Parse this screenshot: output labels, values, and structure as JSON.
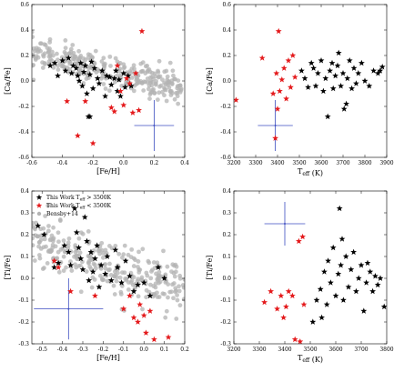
{
  "colors": {
    "this_work_hot": "#000000",
    "this_work_cool": "#e41a1c",
    "bensby": "#b3b3b3",
    "error_bar": "#3b4cc0"
  },
  "legend": {
    "entries": [
      {
        "label": "This Work T$_{eff}$ > 3500K",
        "text": "This Work T",
        "sub": "eff",
        "suffix": " > 3500K",
        "series": "hot",
        "marker": "star"
      },
      {
        "label": "This Work T$_{eff}$ < 3500K",
        "text": "This Work T",
        "sub": "eff",
        "suffix": " < 3500K",
        "series": "cool",
        "marker": "star"
      },
      {
        "label": "Bensby+14",
        "text": "Bensby+14",
        "sub": "",
        "suffix": "",
        "series": "bensby",
        "marker": "circle"
      }
    ],
    "placement": "top-left of bottom-left panel"
  },
  "chart_data": [
    {
      "type": "scatter",
      "panel": "top-left",
      "xlabel": "[Fe/H]",
      "ylabel": "[Ca/Fe]",
      "xlim": [
        -0.6,
        0.4
      ],
      "ylim": [
        -0.6,
        0.6
      ],
      "xticks": [
        "-0.6",
        "-0.4",
        "-0.2",
        "0.0",
        "0.2",
        "0.4"
      ],
      "yticks": [
        "-0.6",
        "-0.4",
        "-0.2",
        "0.0",
        "0.2",
        "0.4",
        "0.6"
      ],
      "error_bar": {
        "x": 0.2,
        "y": -0.35,
        "xerr": 0.13,
        "yerr": 0.2
      },
      "series": [
        {
          "name": "This Work T_eff > 3500K",
          "points": [
            [
              -0.48,
              0.12
            ],
            [
              -0.45,
              0.14
            ],
            [
              -0.43,
              0.04
            ],
            [
              -0.4,
              0.16
            ],
            [
              -0.38,
              0.08
            ],
            [
              -0.36,
              0.18
            ],
            [
              -0.34,
              0.06
            ],
            [
              -0.33,
              0.12
            ],
            [
              -0.31,
              0.1
            ],
            [
              -0.3,
              0.04
            ],
            [
              -0.29,
              0.0
            ],
            [
              -0.28,
              0.14
            ],
            [
              -0.27,
              -0.04
            ],
            [
              -0.26,
              0.07
            ],
            [
              -0.25,
              0.12
            ],
            [
              -0.24,
              -0.1
            ],
            [
              -0.22,
              0.05
            ],
            [
              -0.21,
              0.15
            ],
            [
              -0.2,
              -0.06
            ],
            [
              -0.19,
              0.1
            ],
            [
              -0.17,
              0.02
            ],
            [
              -0.16,
              -0.02
            ],
            [
              -0.14,
              0.08
            ],
            [
              -0.12,
              -0.12
            ],
            [
              -0.11,
              0.04
            ],
            [
              -0.09,
              0.03
            ],
            [
              -0.08,
              -0.03
            ],
            [
              -0.06,
              0.02
            ],
            [
              -0.05,
              0.08
            ],
            [
              -0.04,
              -0.08
            ],
            [
              -0.03,
              0.01
            ],
            [
              -0.02,
              -0.12
            ],
            [
              0.0,
              0.06
            ],
            [
              0.01,
              -0.05
            ],
            [
              0.03,
              0.04
            ],
            [
              0.05,
              -0.04
            ],
            [
              -0.22,
              -0.28
            ],
            [
              -0.23,
              -0.28
            ]
          ]
        },
        {
          "name": "This Work T_eff < 3500K",
          "points": [
            [
              0.12,
              0.39
            ],
            [
              -0.37,
              -0.16
            ],
            [
              -0.3,
              -0.43
            ],
            [
              -0.25,
              -0.16
            ],
            [
              -0.2,
              -0.49
            ],
            [
              -0.08,
              -0.21
            ],
            [
              -0.06,
              -0.24
            ],
            [
              -0.04,
              0.12
            ],
            [
              -0.02,
              -0.08
            ],
            [
              0.0,
              -0.19
            ],
            [
              0.02,
              0.02
            ],
            [
              0.04,
              -0.02
            ],
            [
              0.06,
              -0.25
            ],
            [
              0.08,
              0.06
            ],
            [
              0.1,
              -0.23
            ]
          ]
        },
        {
          "name": "Bensby+14",
          "scatter_generated": true,
          "x_range": [
            -0.6,
            0.38
          ],
          "trend": [
            [
              -0.6,
              0.22
            ],
            [
              -0.2,
              0.11
            ],
            [
              0.0,
              0.05
            ],
            [
              0.38,
              -0.05
            ]
          ],
          "spread": 0.06,
          "count": 320
        }
      ]
    },
    {
      "type": "scatter",
      "panel": "top-right",
      "xlabel": "T$_{eff}$ (K)",
      "ylabel": "[Ca/Fe]",
      "xlim": [
        3200,
        3900
      ],
      "ylim": [
        -0.6,
        0.6
      ],
      "xticks": [
        "3200",
        "3300",
        "3400",
        "3500",
        "3600",
        "3700",
        "3800",
        "3900"
      ],
      "yticks": [
        "-0.6",
        "-0.4",
        "-0.2",
        "0.0",
        "0.2",
        "0.4",
        "0.6"
      ],
      "error_bar": {
        "x": 3390,
        "y": -0.35,
        "xerr": 80,
        "yerr": 0.2
      },
      "series": [
        {
          "name": "This Work T_eff > 3500K",
          "points": [
            [
              3510,
              0.08
            ],
            [
              3525,
              0.02
            ],
            [
              3540,
              -0.05
            ],
            [
              3555,
              0.14
            ],
            [
              3565,
              0.1
            ],
            [
              3575,
              -0.04
            ],
            [
              3585,
              0.06
            ],
            [
              3600,
              0.16
            ],
            [
              3610,
              -0.08
            ],
            [
              3620,
              0.02
            ],
            [
              3630,
              -0.28
            ],
            [
              3640,
              0.08
            ],
            [
              3650,
              0.14
            ],
            [
              3655,
              -0.06
            ],
            [
              3665,
              0.04
            ],
            [
              3675,
              0.12
            ],
            [
              3680,
              0.22
            ],
            [
              3690,
              -0.04
            ],
            [
              3700,
              0.06
            ],
            [
              3705,
              -0.22
            ],
            [
              3715,
              -0.18
            ],
            [
              3720,
              0.02
            ],
            [
              3730,
              0.16
            ],
            [
              3740,
              -0.06
            ],
            [
              3750,
              0.1
            ],
            [
              3760,
              -0.02
            ],
            [
              3770,
              0.06
            ],
            [
              3785,
              0.14
            ],
            [
              3800,
              0.0
            ],
            [
              3820,
              -0.04
            ],
            [
              3840,
              0.08
            ],
            [
              3860,
              0.06
            ],
            [
              3870,
              0.08
            ],
            [
              3880,
              0.11
            ]
          ]
        },
        {
          "name": "This Work T_eff < 3500K",
          "points": [
            [
              3210,
              -0.15
            ],
            [
              3330,
              0.18
            ],
            [
              3380,
              -0.1
            ],
            [
              3390,
              -0.45
            ],
            [
              3395,
              0.06
            ],
            [
              3400,
              -0.22
            ],
            [
              3405,
              0.39
            ],
            [
              3410,
              -0.08
            ],
            [
              3420,
              0.01
            ],
            [
              3430,
              0.1
            ],
            [
              3440,
              -0.14
            ],
            [
              3450,
              0.16
            ],
            [
              3460,
              -0.05
            ],
            [
              3470,
              0.2
            ],
            [
              3480,
              0.03
            ]
          ]
        }
      ]
    },
    {
      "type": "scatter",
      "panel": "bottom-left",
      "xlabel": "[Fe/H]",
      "ylabel": "[Ti/Fe]",
      "xlim": [
        -0.55,
        0.2
      ],
      "ylim": [
        -0.3,
        0.4
      ],
      "xticks": [
        "-0.5",
        "-0.4",
        "-0.3",
        "-0.2",
        "-0.1",
        "0.0",
        "0.1",
        "0.2"
      ],
      "yticks": [
        "-0.3",
        "-0.2",
        "-0.1",
        "0.0",
        "0.1",
        "0.2",
        "0.3",
        "0.4"
      ],
      "error_bar": {
        "x": -0.37,
        "y": -0.14,
        "xerr": 0.17,
        "yerr": 0.14
      },
      "series": [
        {
          "name": "This Work T_eff > 3500K",
          "points": [
            [
              -0.52,
              0.24
            ],
            [
              -0.49,
              0.2
            ],
            [
              -0.44,
              0.05
            ],
            [
              -0.42,
              0.07
            ],
            [
              -0.39,
              0.15
            ],
            [
              -0.37,
              0.12
            ],
            [
              -0.36,
              0.06
            ],
            [
              -0.34,
              0.32
            ],
            [
              -0.33,
              0.21
            ],
            [
              -0.32,
              0.14
            ],
            [
              -0.31,
              0.09
            ],
            [
              -0.3,
              0.04
            ],
            [
              -0.29,
              0.28
            ],
            [
              -0.28,
              0.17
            ],
            [
              -0.27,
              -0.01
            ],
            [
              -0.26,
              0.12
            ],
            [
              -0.25,
              0.03
            ],
            [
              -0.24,
              0.09
            ],
            [
              -0.23,
              0.15
            ],
            [
              -0.22,
              -0.04
            ],
            [
              -0.21,
              0.06
            ],
            [
              -0.19,
              0.02
            ],
            [
              -0.18,
              0.1
            ],
            [
              -0.16,
              -0.01
            ],
            [
              -0.14,
              0.13
            ],
            [
              -0.13,
              0.05
            ],
            [
              -0.11,
              -0.02
            ],
            [
              -0.09,
              0.08
            ],
            [
              -0.07,
              0.01
            ],
            [
              -0.05,
              -0.06
            ],
            [
              -0.03,
              -0.03
            ],
            [
              0.0,
              -0.02
            ],
            [
              0.03,
              -0.08
            ],
            [
              0.07,
              0.05
            ],
            [
              0.1,
              0.0
            ]
          ]
        },
        {
          "name": "This Work T_eff < 3500K",
          "points": [
            [
              -0.44,
              0.08
            ],
            [
              -0.42,
              0.05
            ],
            [
              -0.36,
              -0.06
            ],
            [
              -0.24,
              -0.08
            ],
            [
              -0.1,
              -0.14
            ],
            [
              -0.07,
              -0.08
            ],
            [
              -0.05,
              -0.18
            ],
            [
              -0.03,
              -0.2
            ],
            [
              -0.02,
              -0.12
            ],
            [
              0.0,
              -0.17
            ],
            [
              0.01,
              -0.25
            ],
            [
              0.03,
              -0.15
            ],
            [
              0.05,
              -0.28
            ],
            [
              0.12,
              -0.27
            ]
          ]
        },
        {
          "name": "Bensby+14",
          "scatter_generated": true,
          "x_range": [
            -0.55,
            0.2
          ],
          "trend": [
            [
              -0.55,
              0.18
            ],
            [
              -0.3,
              0.08
            ],
            [
              0.0,
              0.0
            ],
            [
              0.2,
              -0.04
            ]
          ],
          "spread": 0.06,
          "count": 300
        }
      ]
    },
    {
      "type": "scatter",
      "panel": "bottom-right",
      "xlabel": "T$_{eff}$ (K)",
      "ylabel": "[Ti/Fe]",
      "xlim": [
        3200,
        3800
      ],
      "ylim": [
        -0.3,
        0.4
      ],
      "xticks": [
        "3200",
        "3300",
        "3400",
        "3500",
        "3600",
        "3700",
        "3800"
      ],
      "yticks": [
        "-0.3",
        "-0.2",
        "-0.1",
        "0.0",
        "0.1",
        "0.2",
        "0.3",
        "0.4"
      ],
      "error_bar": {
        "x": 3400,
        "y": 0.25,
        "xerr": 80,
        "yerr": 0.1
      },
      "series": [
        {
          "name": "This Work T_eff > 3500K",
          "points": [
            [
              3510,
              -0.2
            ],
            [
              3525,
              -0.1
            ],
            [
              3540,
              -0.05
            ],
            [
              3545,
              -0.18
            ],
            [
              3555,
              0.03
            ],
            [
              3565,
              -0.12
            ],
            [
              3570,
              0.08
            ],
            [
              3580,
              -0.02
            ],
            [
              3590,
              0.14
            ],
            [
              3600,
              -0.08
            ],
            [
              3610,
              0.02
            ],
            [
              3615,
              0.32
            ],
            [
              3620,
              0.06
            ],
            [
              3625,
              0.18
            ],
            [
              3630,
              -0.1
            ],
            [
              3640,
              0.1
            ],
            [
              3650,
              -0.04
            ],
            [
              3660,
              0.04
            ],
            [
              3670,
              0.12
            ],
            [
              3680,
              -0.06
            ],
            [
              3690,
              0.0
            ],
            [
              3700,
              0.06
            ],
            [
              3710,
              -0.15
            ],
            [
              3720,
              -0.02
            ],
            [
              3725,
              0.07
            ],
            [
              3735,
              0.03
            ],
            [
              3745,
              -0.06
            ],
            [
              3755,
              0.01
            ],
            [
              3765,
              -0.03
            ],
            [
              3775,
              0.0
            ],
            [
              3790,
              -0.13
            ]
          ]
        },
        {
          "name": "This Work T_eff < 3500K",
          "points": [
            [
              3320,
              -0.11
            ],
            [
              3345,
              -0.06
            ],
            [
              3370,
              -0.14
            ],
            [
              3385,
              -0.08
            ],
            [
              3395,
              -0.18
            ],
            [
              3405,
              -0.13
            ],
            [
              3415,
              -0.06
            ],
            [
              3430,
              -0.08
            ],
            [
              3440,
              -0.28
            ],
            [
              3455,
              0.17
            ],
            [
              3460,
              -0.29
            ],
            [
              3470,
              0.19
            ],
            [
              3475,
              -0.12
            ]
          ]
        }
      ]
    }
  ]
}
